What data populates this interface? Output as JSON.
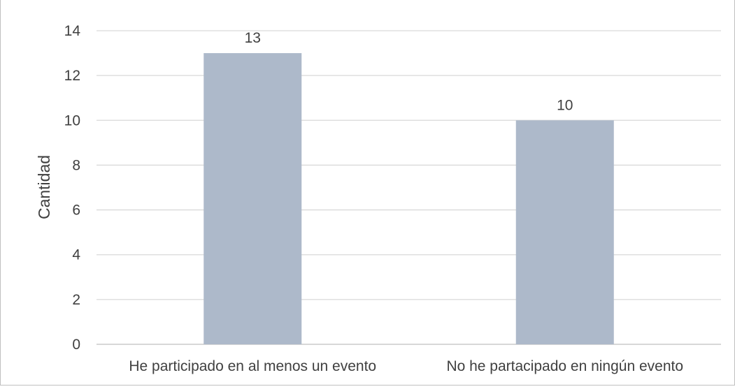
{
  "chart_data": {
    "type": "bar",
    "title": "",
    "xlabel": "",
    "ylabel": "Cantidad",
    "categories": [
      "He participado en al menos un evento",
      "No he partacipado en ningún evento"
    ],
    "values": [
      13,
      10
    ],
    "data_labels": [
      "13",
      "10"
    ],
    "ylim": [
      0,
      14
    ],
    "yticks": [
      0,
      2,
      4,
      6,
      8,
      10,
      12,
      14
    ],
    "grid": true,
    "legend": "none",
    "colors": {
      "bar": "#adb9ca",
      "grid": "#d9d9d9",
      "text": "#404040"
    }
  }
}
